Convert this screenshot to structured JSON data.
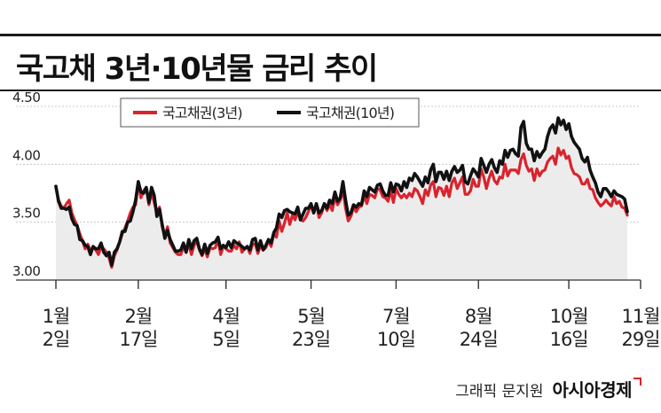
{
  "title": "국고채 3년·10년물 금리 추이",
  "credit": {
    "prefix": "그래픽 문지원",
    "brand": "아시아경제"
  },
  "colors": {
    "series_3y": "#d9232d",
    "series_10y": "#111111",
    "area": "#ececec"
  },
  "chart_data": {
    "type": "line",
    "title": "국고채 3년·10년물 금리 추이",
    "ylim": [
      3.0,
      4.5
    ],
    "y_ticks": [
      "3.00",
      "3.50",
      "4.00",
      "4.50"
    ],
    "x_ticks": [
      {
        "month": "1월",
        "day": "2일",
        "index": 0
      },
      {
        "month": "2월",
        "day": "17일",
        "index": 31
      },
      {
        "month": "4월",
        "day": "5일",
        "index": 64
      },
      {
        "month": "5월",
        "day": "23일",
        "index": 96
      },
      {
        "month": "7월",
        "day": "10일",
        "index": 128
      },
      {
        "month": "8월",
        "day": "24일",
        "index": 159
      },
      {
        "month": "10월",
        "day": "16일",
        "index": 193
      },
      {
        "month": "11월",
        "day": "29일",
        "index": 220
      }
    ],
    "legend_position": "top",
    "series": [
      {
        "name": "국고채권(3년)",
        "values": [
          3.8,
          3.69,
          3.64,
          3.62,
          3.66,
          3.69,
          3.58,
          3.52,
          3.47,
          3.4,
          3.34,
          3.27,
          3.31,
          3.25,
          3.29,
          3.26,
          3.22,
          3.29,
          3.27,
          3.24,
          3.19,
          3.11,
          3.21,
          3.26,
          3.33,
          3.4,
          3.45,
          3.51,
          3.58,
          3.63,
          3.65,
          3.85,
          3.71,
          3.77,
          3.8,
          3.65,
          3.76,
          3.67,
          3.58,
          3.63,
          3.46,
          3.38,
          3.46,
          3.32,
          3.28,
          3.24,
          3.22,
          3.22,
          3.29,
          3.24,
          3.31,
          3.22,
          3.3,
          3.33,
          3.26,
          3.21,
          3.27,
          3.2,
          3.28,
          3.27,
          3.28,
          3.35,
          3.22,
          3.29,
          3.27,
          3.25,
          3.25,
          3.3,
          3.27,
          3.33,
          3.24,
          3.27,
          3.29,
          3.23,
          3.31,
          3.31,
          3.23,
          3.3,
          3.26,
          3.28,
          3.34,
          3.29,
          3.4,
          3.37,
          3.51,
          3.42,
          3.49,
          3.58,
          3.48,
          3.56,
          3.52,
          3.59,
          3.52,
          3.51,
          3.54,
          3.59,
          3.65,
          3.58,
          3.66,
          3.54,
          3.58,
          3.66,
          3.6,
          3.65,
          3.6,
          3.72,
          3.65,
          3.69,
          3.79,
          3.62,
          3.51,
          3.55,
          3.63,
          3.59,
          3.63,
          3.64,
          3.73,
          3.66,
          3.74,
          3.73,
          3.71,
          3.79,
          3.78,
          3.72,
          3.71,
          3.68,
          3.77,
          3.67,
          3.79,
          3.74,
          3.71,
          3.74,
          3.71,
          3.75,
          3.72,
          3.79,
          3.77,
          3.72,
          3.66,
          3.78,
          3.73,
          3.82,
          3.85,
          3.72,
          3.8,
          3.79,
          3.73,
          3.81,
          3.72,
          3.84,
          3.88,
          3.79,
          3.84,
          3.89,
          3.74,
          3.74,
          3.77,
          3.87,
          3.81,
          3.81,
          3.96,
          3.89,
          3.79,
          3.88,
          3.94,
          3.86,
          3.83,
          3.89,
          3.88,
          4.0,
          3.9,
          3.95,
          3.95,
          3.95,
          3.92,
          4.04,
          4.09,
          3.99,
          3.94,
          3.96,
          3.86,
          3.96,
          3.9,
          3.94,
          3.95,
          4.02,
          4.05,
          4.07,
          4.0,
          4.14,
          4.08,
          4.12,
          4.05,
          4.07,
          3.97,
          3.92,
          3.91,
          3.89,
          3.83,
          3.83,
          3.87,
          3.79,
          3.78,
          3.71,
          3.67,
          3.64,
          3.66,
          3.69,
          3.66,
          3.64,
          3.72,
          3.66,
          3.68,
          3.63,
          3.62,
          3.56
        ]
      },
      {
        "name": "국고채권(10년)",
        "values": [
          3.81,
          3.68,
          3.62,
          3.62,
          3.61,
          3.63,
          3.53,
          3.48,
          3.47,
          3.35,
          3.34,
          3.3,
          3.29,
          3.22,
          3.29,
          3.27,
          3.27,
          3.32,
          3.24,
          3.21,
          3.24,
          3.13,
          3.24,
          3.27,
          3.33,
          3.42,
          3.42,
          3.5,
          3.51,
          3.59,
          3.69,
          3.85,
          3.76,
          3.75,
          3.8,
          3.67,
          3.8,
          3.73,
          3.55,
          3.61,
          3.48,
          3.36,
          3.43,
          3.35,
          3.3,
          3.25,
          3.25,
          3.26,
          3.32,
          3.24,
          3.35,
          3.27,
          3.34,
          3.36,
          3.27,
          3.22,
          3.31,
          3.23,
          3.3,
          3.32,
          3.33,
          3.37,
          3.27,
          3.3,
          3.28,
          3.33,
          3.28,
          3.34,
          3.32,
          3.31,
          3.29,
          3.27,
          3.29,
          3.26,
          3.35,
          3.36,
          3.26,
          3.34,
          3.26,
          3.3,
          3.35,
          3.32,
          3.41,
          3.45,
          3.57,
          3.54,
          3.6,
          3.61,
          3.59,
          3.58,
          3.57,
          3.63,
          3.52,
          3.57,
          3.62,
          3.62,
          3.66,
          3.58,
          3.66,
          3.58,
          3.6,
          3.66,
          3.62,
          3.69,
          3.66,
          3.76,
          3.68,
          3.71,
          3.85,
          3.69,
          3.56,
          3.58,
          3.65,
          3.63,
          3.66,
          3.65,
          3.77,
          3.72,
          3.8,
          3.78,
          3.76,
          3.82,
          3.83,
          3.77,
          3.73,
          3.73,
          3.84,
          3.76,
          3.83,
          3.82,
          3.77,
          3.85,
          3.8,
          3.88,
          3.86,
          3.92,
          3.89,
          3.85,
          3.81,
          3.89,
          3.84,
          3.95,
          4.0,
          3.85,
          3.93,
          3.93,
          3.87,
          3.94,
          3.86,
          3.94,
          3.98,
          3.93,
          3.95,
          3.99,
          3.85,
          3.83,
          3.9,
          3.96,
          3.93,
          3.89,
          4.05,
          3.99,
          3.93,
          4.0,
          4.04,
          3.97,
          3.93,
          4.03,
          4.0,
          4.12,
          4.06,
          4.12,
          4.13,
          4.09,
          4.07,
          4.32,
          4.37,
          4.18,
          4.13,
          4.13,
          4.03,
          4.11,
          4.06,
          4.1,
          4.13,
          4.24,
          4.31,
          4.34,
          4.27,
          4.4,
          4.34,
          4.38,
          4.3,
          4.35,
          4.24,
          4.19,
          4.16,
          4.13,
          4.05,
          4.02,
          4.06,
          3.95,
          3.89,
          3.84,
          3.76,
          3.72,
          3.79,
          3.79,
          3.76,
          3.72,
          3.77,
          3.74,
          3.73,
          3.72,
          3.7,
          3.59
        ]
      }
    ]
  }
}
